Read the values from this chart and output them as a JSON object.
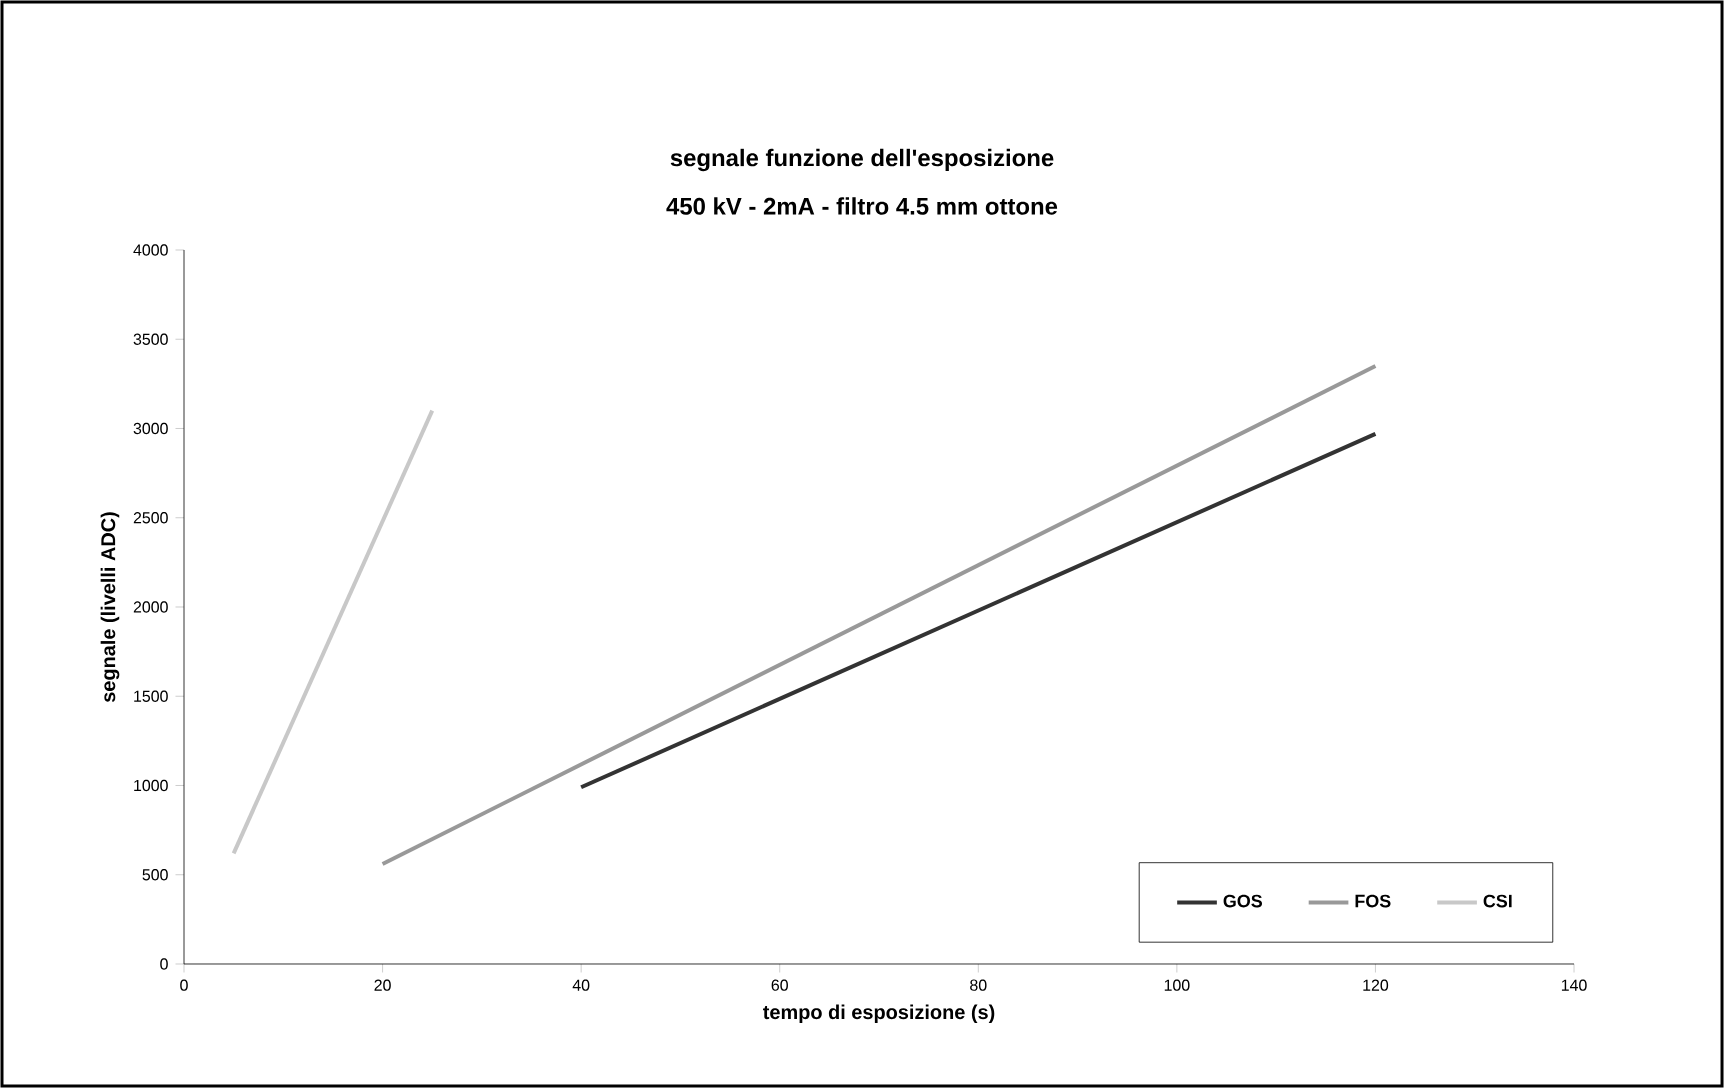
{
  "chart_data": {
    "type": "line",
    "title": "segnale funzione dell'esposizione",
    "subtitle": "450 kV - 2mA - filtro 4.5 mm ottone",
    "xlabel": "tempo di esposizione (s)",
    "ylabel": "segnale (livelli ADC)",
    "xlim": [
      0,
      140
    ],
    "xticks": [
      0,
      20,
      40,
      60,
      80,
      100,
      120,
      140
    ],
    "ylim": [
      0,
      4000
    ],
    "yticks": [
      0,
      500,
      1000,
      1500,
      2000,
      2500,
      3000,
      3500,
      4000
    ],
    "grid": false,
    "legend": "bottom right",
    "marker": "none",
    "line_style": "solid",
    "series": [
      {
        "name": "GOS",
        "color": "#333333",
        "x": [
          40,
          120
        ],
        "values": [
          990,
          2970
        ]
      },
      {
        "name": "FOS",
        "color": "#999999",
        "x": [
          20,
          120
        ],
        "values": [
          560,
          3350
        ]
      },
      {
        "name": "CSI",
        "color": "#c8c8c8",
        "x": [
          5,
          25
        ],
        "values": [
          620,
          3100
        ]
      }
    ]
  }
}
